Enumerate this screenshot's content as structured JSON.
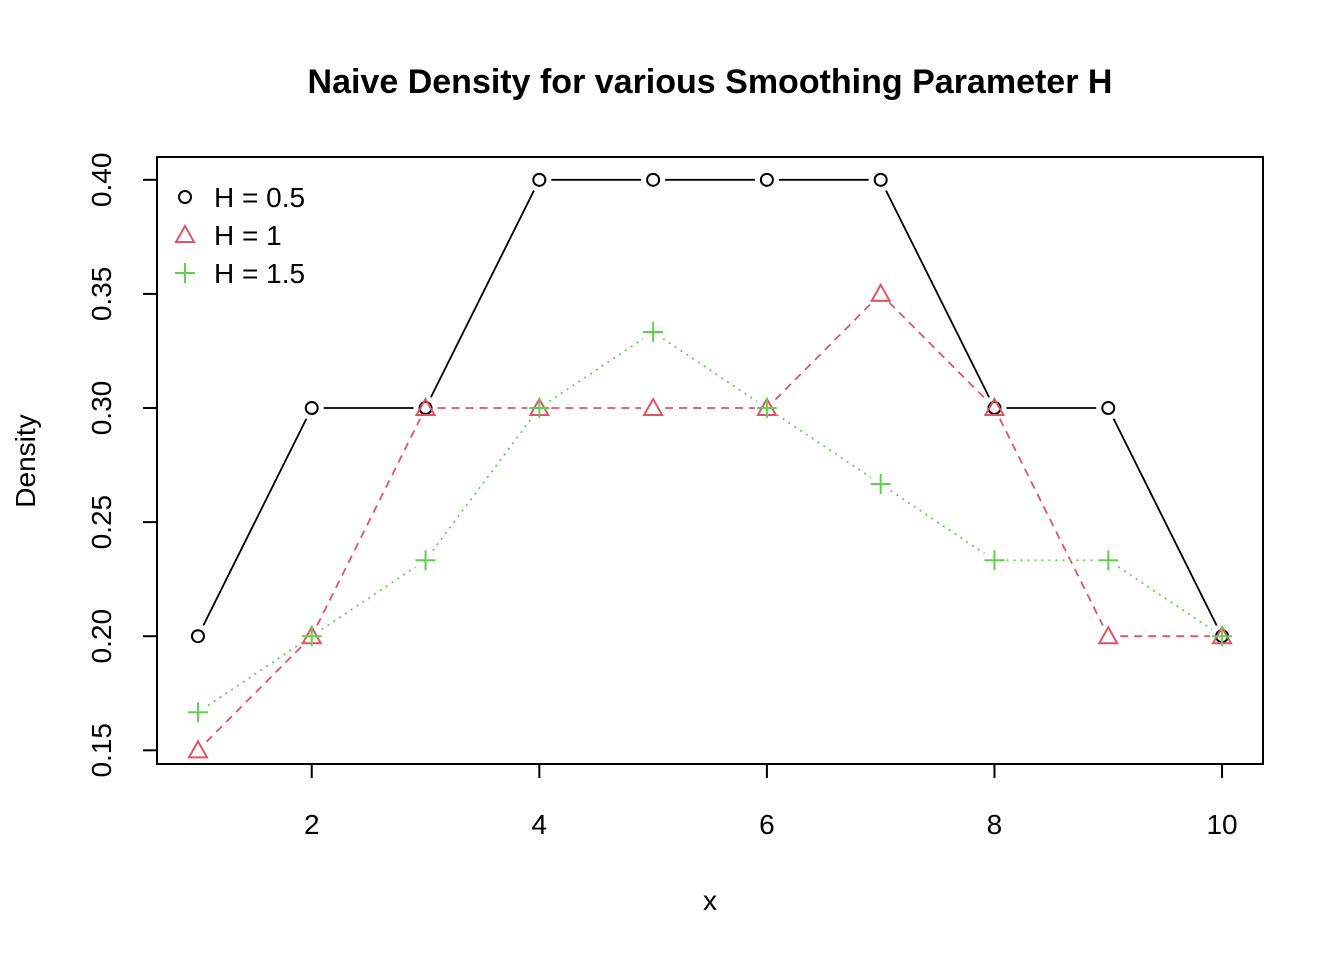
{
  "chart_data": {
    "type": "line",
    "title": "Naive Density for various Smoothing Parameter H",
    "xlabel": "x",
    "ylabel": "Density",
    "x": [
      1,
      2,
      3,
      4,
      5,
      6,
      7,
      8,
      9,
      10
    ],
    "xlim": [
      0.64,
      10.36
    ],
    "ylim": [
      0.144,
      0.41
    ],
    "x_ticks": [
      2,
      4,
      6,
      8,
      10
    ],
    "x_tick_labels": [
      "2",
      "4",
      "6",
      "8",
      "10"
    ],
    "y_ticks": [
      0.15,
      0.2,
      0.25,
      0.3,
      0.35,
      0.4
    ],
    "y_tick_labels": [
      "0.15",
      "0.20",
      "0.25",
      "0.30",
      "0.35",
      "0.40"
    ],
    "grid": false,
    "legend_position": "top-left",
    "series": [
      {
        "name": "H = 0.5",
        "values": [
          0.2,
          0.3,
          0.3,
          0.4,
          0.4,
          0.4,
          0.4,
          0.3,
          0.3,
          0.2
        ],
        "color": "#000000",
        "marker": "circle",
        "line_style": "solid"
      },
      {
        "name": "H = 1",
        "values": [
          0.15,
          0.2,
          0.3,
          0.3,
          0.3,
          0.3,
          0.35,
          0.3,
          0.2,
          0.2
        ],
        "color": "#DF536B",
        "marker": "triangle",
        "line_style": "dashed"
      },
      {
        "name": "H = 1.5",
        "values": [
          0.1667,
          0.2,
          0.2333,
          0.3,
          0.3333,
          0.3,
          0.2667,
          0.2333,
          0.2333,
          0.2
        ],
        "color": "#61D04F",
        "marker": "plus",
        "line_style": "dotted"
      }
    ]
  }
}
